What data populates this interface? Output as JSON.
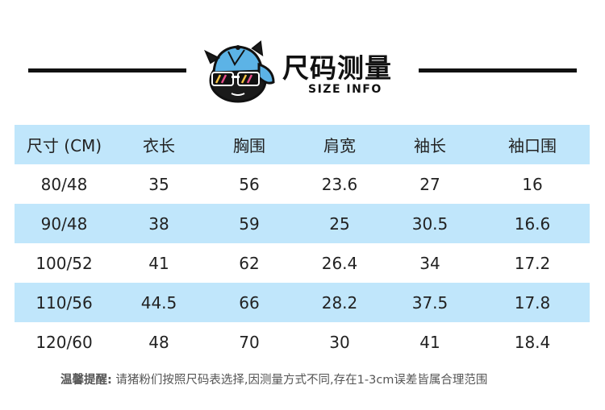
{
  "header": {
    "title_cn": "尺码测量",
    "title_en": "SIZE INFO",
    "logo": "cap-and-sunglasses-mascot-icon"
  },
  "table": {
    "columns": [
      "尺寸 (CM)",
      "衣长",
      "胸围",
      "肩宽",
      "袖长",
      "袖口围"
    ],
    "rows": [
      [
        "80/48",
        "35",
        "56",
        "23.6",
        "27",
        "16"
      ],
      [
        "90/48",
        "38",
        "59",
        "25",
        "30.5",
        "16.6"
      ],
      [
        "100/52",
        "41",
        "62",
        "26.4",
        "34",
        "17.2"
      ],
      [
        "110/56",
        "44.5",
        "66",
        "28.2",
        "37.5",
        "17.8"
      ],
      [
        "120/60",
        "48",
        "70",
        "30",
        "41",
        "18.4"
      ]
    ]
  },
  "note": {
    "lead": "温馨提醒:",
    "text": " 请猪粉们按照尺码表选择,因测量方式不同,存在1-3cm误差皆属合理范围"
  },
  "colors": {
    "row_highlight": "#c0e6fb",
    "rule": "#111111",
    "cap_blue": "#5cb3e6"
  }
}
